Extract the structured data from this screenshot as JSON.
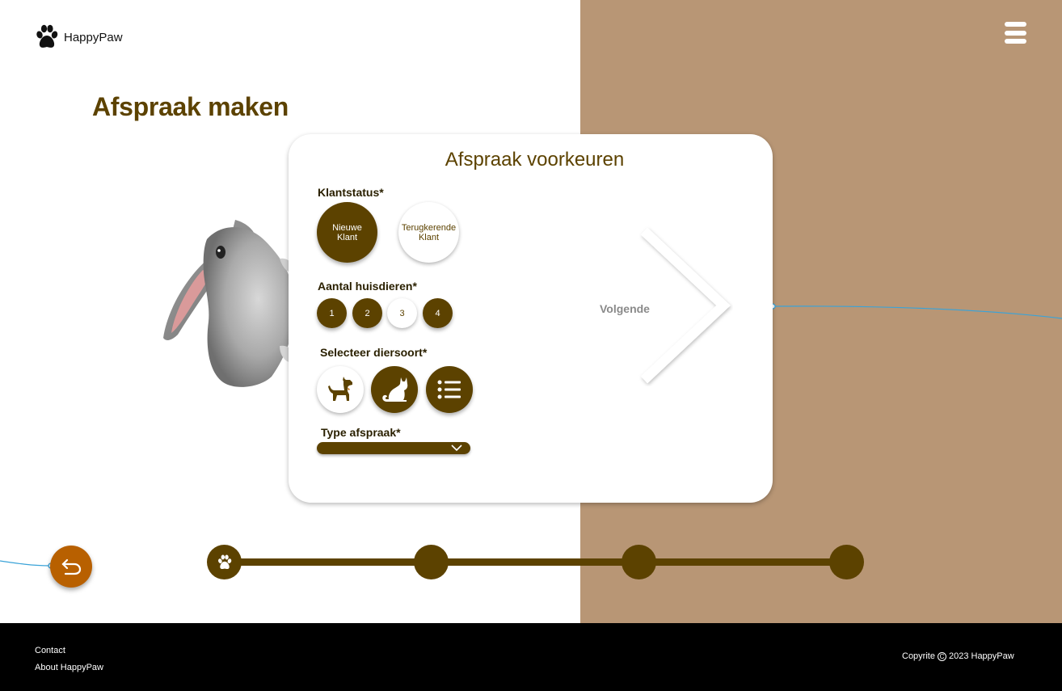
{
  "header": {
    "logo_text": "HappyPaw"
  },
  "page": {
    "title": "Afspraak maken"
  },
  "card": {
    "title": "Afspraak voorkeuren",
    "client_status": {
      "label": "Klantstatus*",
      "options": [
        {
          "line1": "Nieuwe",
          "line2": "Klant",
          "selected": true
        },
        {
          "line1": "Terugkerende",
          "line2": "Klant",
          "selected": false
        }
      ]
    },
    "pet_count": {
      "label": "Aantal huisdieren*",
      "options": [
        "1",
        "2",
        "3",
        "4"
      ],
      "selected": "3"
    },
    "species": {
      "label": "Selecteer diersoort*",
      "options": [
        "dog-icon",
        "cat-icon",
        "list-icon"
      ],
      "selected": "dog-icon"
    },
    "appointment_type": {
      "label": "Type afspraak*",
      "value": ""
    },
    "next_label": "Volgende"
  },
  "progress": {
    "steps": 4,
    "current": 1
  },
  "footer": {
    "contact": "Contact",
    "about": "About HappyPaw",
    "copyright_prefix": "Copyrite",
    "copyright_suffix": "2023 HappyPaw"
  },
  "colors": {
    "brand_dark": "#5c4200",
    "panel_tan": "#b89675",
    "back_button": "#b86000",
    "connector": "#3aa3d8"
  }
}
